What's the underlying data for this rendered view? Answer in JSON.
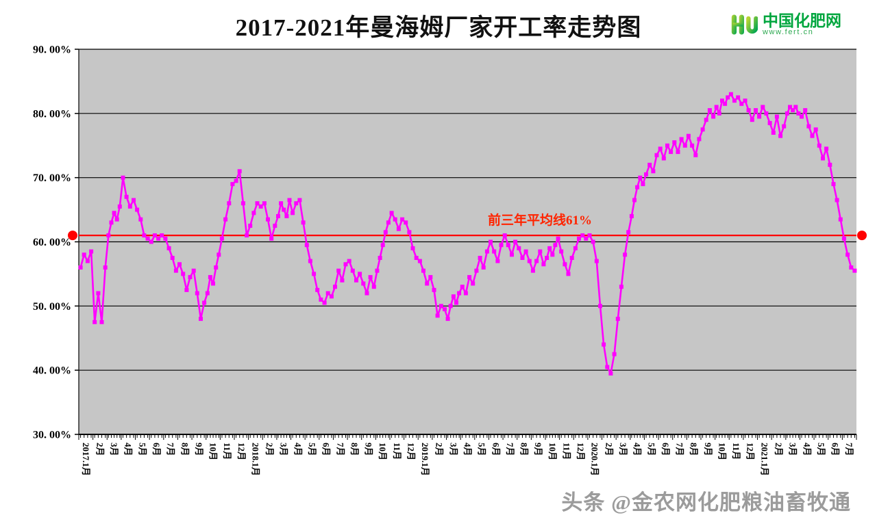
{
  "title": "2017-2021年曼海姆厂家开工率走势图",
  "logo": {
    "name": "中国化肥网",
    "url": "www.fert.cn"
  },
  "watermark": "头条 @金农网化肥粮油畜牧通",
  "colors": {
    "series": "#ff00ff",
    "average_line": "#ff0000",
    "average_label": "#ff2400",
    "plot_bg": "#c6c6c6",
    "grid": "#000000",
    "logo_green": "#00a63e",
    "watermark": "#9b9b9b"
  },
  "chart_data": {
    "type": "line",
    "title": "2017-2021年曼海姆厂家开工率走势图",
    "xlabel": "",
    "ylabel": "",
    "ylim": [
      30,
      90
    ],
    "ytick_step": 10,
    "ytick_labels": [
      "30. 00%",
      "40. 00%",
      "50. 00%",
      "60. 00%",
      "70. 00%",
      "80. 00%",
      "90. 00%"
    ],
    "grid": true,
    "marker": "square",
    "average_line": {
      "value": 61,
      "label": "前三年平均线61%"
    },
    "months": [
      {
        "label": "2017.1月",
        "values": [
          56,
          58,
          57,
          58.5
        ]
      },
      {
        "label": "2月",
        "values": [
          47.5,
          52,
          47.5,
          56
        ]
      },
      {
        "label": "3月",
        "values": [
          61,
          63,
          64.5,
          63.5,
          65.5
        ]
      },
      {
        "label": "4月",
        "values": [
          70,
          67,
          65.5,
          66.5
        ]
      },
      {
        "label": "5月",
        "values": [
          65,
          63.5,
          61,
          60.5
        ]
      },
      {
        "label": "6月",
        "values": [
          60,
          61,
          60.5,
          61
        ]
      },
      {
        "label": "7月",
        "values": [
          60.5,
          59,
          57.5,
          55.5
        ]
      },
      {
        "label": "8月",
        "values": [
          56.5,
          55,
          52.5,
          54.5
        ]
      },
      {
        "label": "9月",
        "values": [
          55.5,
          52,
          48,
          50.5
        ]
      },
      {
        "label": "10月",
        "values": [
          52,
          54.5,
          53.5,
          56,
          58
        ]
      },
      {
        "label": "11月",
        "values": [
          60.5,
          63.5,
          66,
          69
        ]
      },
      {
        "label": "12月",
        "values": [
          69.5,
          71,
          66,
          61
        ]
      },
      {
        "label": "2018.1月",
        "values": [
          62.5,
          64.5,
          66,
          65.5
        ]
      },
      {
        "label": "2月",
        "values": [
          66,
          63.5,
          60.5,
          62.5
        ]
      },
      {
        "label": "3月",
        "values": [
          64,
          66,
          65,
          64,
          66.5
        ]
      },
      {
        "label": "4月",
        "values": [
          64.5,
          66,
          66.5,
          63
        ]
      },
      {
        "label": "5月",
        "values": [
          59.5,
          57,
          55,
          52.5
        ]
      },
      {
        "label": "6月",
        "values": [
          51,
          50.5,
          52,
          51.5
        ]
      },
      {
        "label": "7月",
        "values": [
          53,
          55.5,
          54,
          56.5
        ]
      },
      {
        "label": "8月",
        "values": [
          57,
          55.5,
          54,
          55
        ]
      },
      {
        "label": "9月",
        "values": [
          53.5,
          52,
          54.5,
          53
        ]
      },
      {
        "label": "10月",
        "values": [
          55.5,
          57.5,
          59.5,
          61.5,
          63
        ]
      },
      {
        "label": "11月",
        "values": [
          64.5,
          63.5,
          62,
          63.5
        ]
      },
      {
        "label": "12月",
        "values": [
          63,
          61.5,
          59,
          57.5
        ]
      },
      {
        "label": "2019.1月",
        "values": [
          57,
          55.5,
          53.5,
          54.5
        ]
      },
      {
        "label": "2月",
        "values": [
          52.5,
          48.5,
          50,
          49.5
        ]
      },
      {
        "label": "3月",
        "values": [
          48,
          50,
          51.5,
          50.5,
          52
        ]
      },
      {
        "label": "4月",
        "values": [
          53,
          52,
          54.5,
          53.5
        ]
      },
      {
        "label": "5月",
        "values": [
          55.5,
          57.5,
          56,
          58.5
        ]
      },
      {
        "label": "6月",
        "values": [
          60,
          58.5,
          57,
          59.5
        ]
      },
      {
        "label": "7月",
        "values": [
          61,
          59.5,
          58,
          60
        ]
      },
      {
        "label": "8月",
        "values": [
          59,
          57.5,
          58.5,
          57
        ]
      },
      {
        "label": "9月",
        "values": [
          55.5,
          57,
          58.5,
          56.5
        ]
      },
      {
        "label": "10月",
        "values": [
          57.5,
          59,
          58,
          59.5,
          60.5
        ]
      },
      {
        "label": "11月",
        "values": [
          58.5,
          56.5,
          55,
          57.5
        ]
      },
      {
        "label": "12月",
        "values": [
          59,
          60.5,
          61,
          60.5
        ]
      },
      {
        "label": "2020.1月",
        "values": [
          61,
          60,
          57,
          50
        ]
      },
      {
        "label": "2月",
        "values": [
          44,
          40.5,
          39.5,
          42.5
        ]
      },
      {
        "label": "3月",
        "values": [
          48,
          53,
          58,
          61.5
        ]
      },
      {
        "label": "4月",
        "values": [
          64,
          66.5,
          68.5,
          70,
          69
        ]
      },
      {
        "label": "5月",
        "values": [
          70.5,
          72,
          71,
          73.5
        ]
      },
      {
        "label": "6月",
        "values": [
          74.5,
          73,
          75,
          74
        ]
      },
      {
        "label": "7月",
        "values": [
          75.5,
          74,
          76,
          75
        ]
      },
      {
        "label": "8月",
        "values": [
          76.5,
          75,
          73.5,
          76
        ]
      },
      {
        "label": "9月",
        "values": [
          77.5,
          79,
          80.5,
          79.5
        ]
      },
      {
        "label": "10月",
        "values": [
          81,
          80,
          82,
          81.5,
          82.5
        ]
      },
      {
        "label": "11月",
        "values": [
          83,
          82,
          82.5,
          81.5
        ]
      },
      {
        "label": "12月",
        "values": [
          82,
          80.5,
          79,
          80.5
        ]
      },
      {
        "label": "2021.1月",
        "values": [
          79.5,
          81,
          80,
          78.5
        ]
      },
      {
        "label": "2月",
        "values": [
          77,
          79.5,
          76.5,
          78
        ]
      },
      {
        "label": "3月",
        "values": [
          80,
          81,
          80.5,
          81,
          80
        ]
      },
      {
        "label": "4月",
        "values": [
          79.5,
          80.5,
          78,
          76.5
        ]
      },
      {
        "label": "5月",
        "values": [
          77.5,
          75,
          73,
          74.5
        ]
      },
      {
        "label": "6月",
        "values": [
          72,
          69,
          66.5,
          63.5
        ]
      },
      {
        "label": "7月",
        "values": [
          60.5,
          58,
          56,
          55.5
        ]
      }
    ]
  }
}
